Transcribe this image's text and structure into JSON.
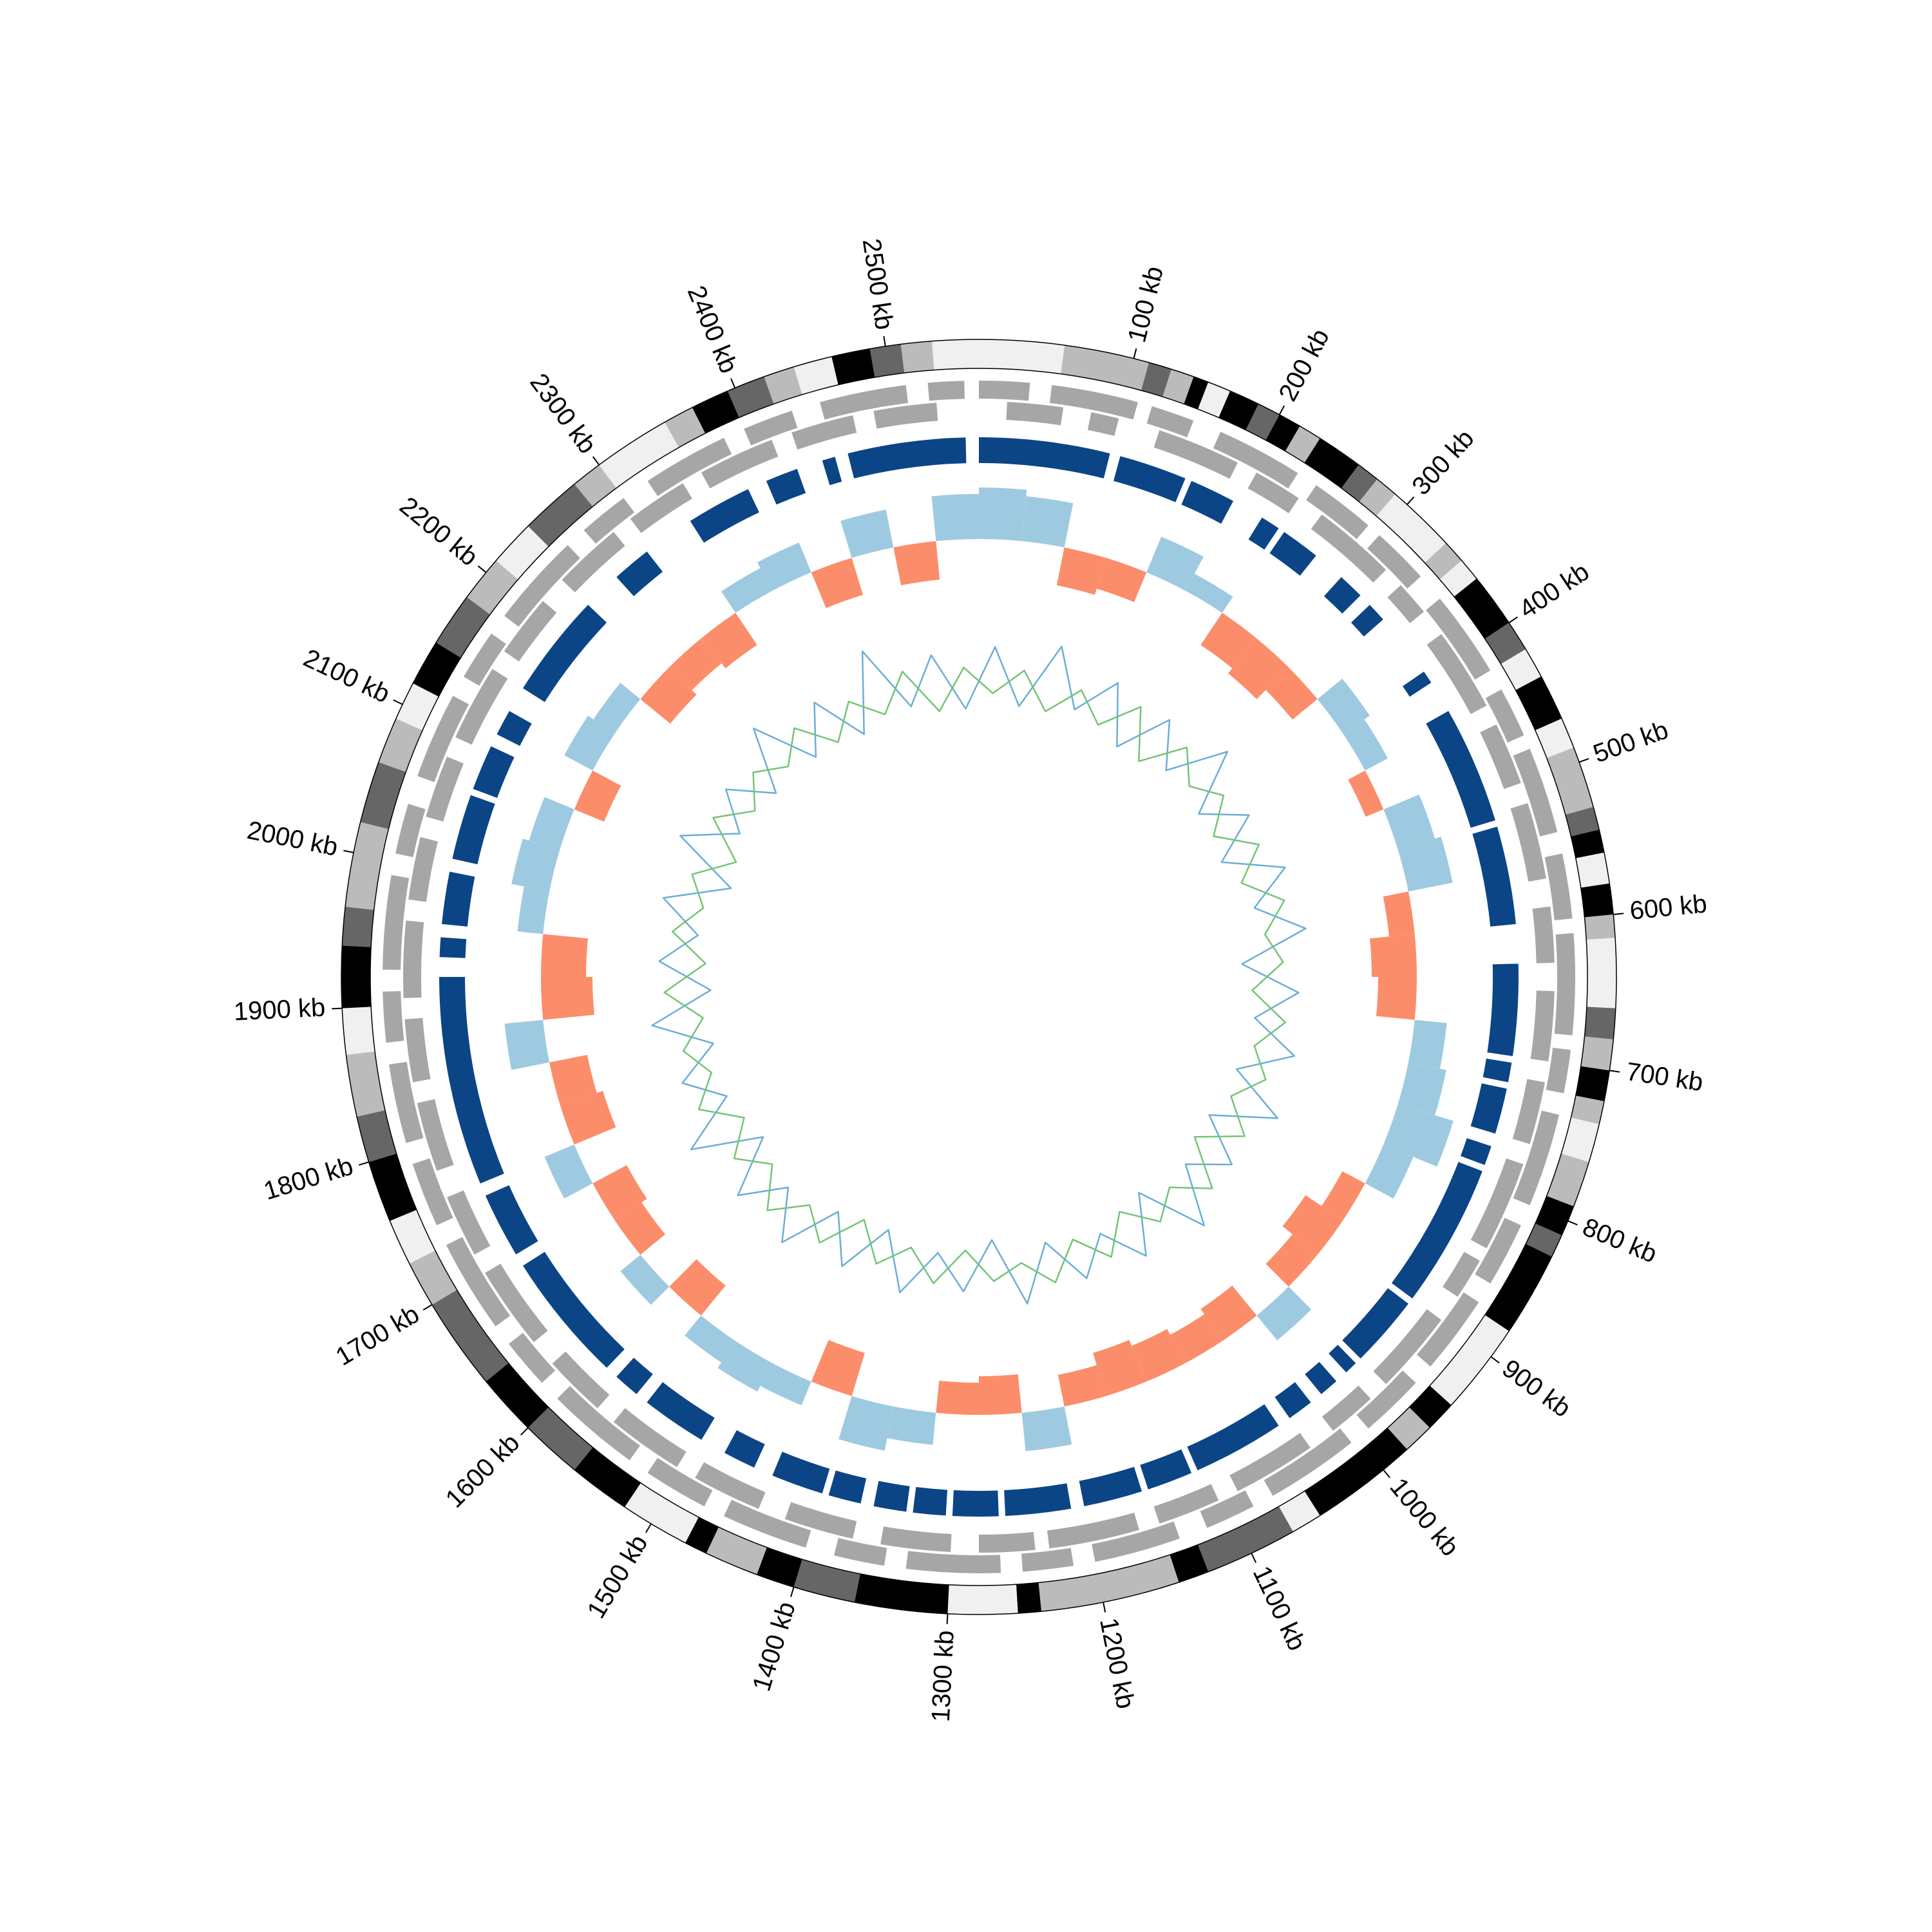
{
  "chart_data": {
    "type": "circular",
    "xlim": [
      0,
      2560
    ],
    "xticks": [
      {
        "value": 100,
        "label": "100 kb"
      },
      {
        "value": 200,
        "label": "200 kb"
      },
      {
        "value": 300,
        "label": "300 kb"
      },
      {
        "value": 400,
        "label": "400 kb"
      },
      {
        "value": 500,
        "label": "500 kb"
      },
      {
        "value": 600,
        "label": "600 kb"
      },
      {
        "value": 700,
        "label": "700 kb"
      },
      {
        "value": 800,
        "label": "800 kb"
      },
      {
        "value": 900,
        "label": "900 kb"
      },
      {
        "value": 1000,
        "label": "1000 kb"
      },
      {
        "value": 1100,
        "label": "1100 kb"
      },
      {
        "value": 1200,
        "label": "1200 kb"
      },
      {
        "value": 1300,
        "label": "1300 kb"
      },
      {
        "value": 1400,
        "label": "1400 kb"
      },
      {
        "value": 1500,
        "label": "1500 kb"
      },
      {
        "value": 1600,
        "label": "1600 kb"
      },
      {
        "value": 1700,
        "label": "1700 kb"
      },
      {
        "value": 1800,
        "label": "1800 kb"
      },
      {
        "value": 1900,
        "label": "1900 kb"
      },
      {
        "value": 2000,
        "label": "2000 kb"
      },
      {
        "value": 2100,
        "label": "2100 kb"
      },
      {
        "value": 2200,
        "label": "2200 kb"
      },
      {
        "value": 2300,
        "label": "2300 kb"
      },
      {
        "value": 2400,
        "label": "2400 kb"
      },
      {
        "value": 2500,
        "label": "2500 kb"
      }
    ],
    "bands": [
      [
        0,
        55,
        "#f0f0f0"
      ],
      [
        55,
        110,
        "#bbbbbb"
      ],
      [
        110,
        125,
        "#666666"
      ],
      [
        125,
        140,
        "#bbbbbb"
      ],
      [
        140,
        150,
        "#000000"
      ],
      [
        150,
        165,
        "#f0f0f0"
      ],
      [
        165,
        185,
        "#000000"
      ],
      [
        185,
        200,
        "#666666"
      ],
      [
        200,
        215,
        "#000000"
      ],
      [
        215,
        230,
        "#bbbbbb"
      ],
      [
        230,
        260,
        "#000000"
      ],
      [
        260,
        275,
        "#666666"
      ],
      [
        275,
        290,
        "#bbbbbb"
      ],
      [
        290,
        335,
        "#f0f0f0"
      ],
      [
        335,
        350,
        "#bbbbbb"
      ],
      [
        350,
        365,
        "#f0f0f0"
      ],
      [
        365,
        400,
        "#000000"
      ],
      [
        400,
        420,
        "#666666"
      ],
      [
        420,
        440,
        "#f0f0f0"
      ],
      [
        440,
        470,
        "#000000"
      ],
      [
        470,
        490,
        "#f0f0f0"
      ],
      [
        490,
        530,
        "#bbbbbb"
      ],
      [
        530,
        545,
        "#666666"
      ],
      [
        545,
        560,
        "#000000"
      ],
      [
        560,
        580,
        "#f0f0f0"
      ],
      [
        580,
        600,
        "#000000"
      ],
      [
        600,
        615,
        "#bbbbbb"
      ],
      [
        615,
        660,
        "#f0f0f0"
      ],
      [
        660,
        680,
        "#666666"
      ],
      [
        680,
        700,
        "#bbbbbb"
      ],
      [
        700,
        720,
        "#000000"
      ],
      [
        720,
        735,
        "#bbbbbb"
      ],
      [
        735,
        760,
        "#f0f0f0"
      ],
      [
        760,
        790,
        "#bbbbbb"
      ],
      [
        790,
        810,
        "#000000"
      ],
      [
        810,
        825,
        "#666666"
      ],
      [
        825,
        880,
        "#000000"
      ],
      [
        880,
        940,
        "#f0f0f0"
      ],
      [
        940,
        960,
        "#000000"
      ],
      [
        960,
        980,
        "#bbbbbb"
      ],
      [
        980,
        1050,
        "#000000"
      ],
      [
        1050,
        1070,
        "#f0f0f0"
      ],
      [
        1070,
        1130,
        "#666666"
      ],
      [
        1130,
        1150,
        "#000000"
      ],
      [
        1150,
        1240,
        "#bbbbbb"
      ],
      [
        1240,
        1255,
        "#000000"
      ],
      [
        1255,
        1300,
        "#f0f0f0"
      ],
      [
        1300,
        1360,
        "#000000"
      ],
      [
        1360,
        1400,
        "#666666"
      ],
      [
        1400,
        1425,
        "#000000"
      ],
      [
        1425,
        1460,
        "#bbbbbb"
      ],
      [
        1460,
        1475,
        "#000000"
      ],
      [
        1475,
        1520,
        "#f0f0f0"
      ],
      [
        1520,
        1560,
        "#000000"
      ],
      [
        1560,
        1600,
        "#666666"
      ],
      [
        1600,
        1640,
        "#000000"
      ],
      [
        1640,
        1700,
        "#666666"
      ],
      [
        1700,
        1730,
        "#bbbbbb"
      ],
      [
        1730,
        1760,
        "#f0f0f0"
      ],
      [
        1760,
        1800,
        "#000000"
      ],
      [
        1800,
        1830,
        "#666666"
      ],
      [
        1830,
        1870,
        "#bbbbbb"
      ],
      [
        1870,
        1900,
        "#f0f0f0"
      ],
      [
        1900,
        1940,
        "#000000"
      ],
      [
        1940,
        1965,
        "#666666"
      ],
      [
        1965,
        2020,
        "#bbbbbb"
      ],
      [
        2020,
        2060,
        "#666666"
      ],
      [
        2060,
        2090,
        "#bbbbbb"
      ],
      [
        2090,
        2115,
        "#f0f0f0"
      ],
      [
        2115,
        2145,
        "#000000"
      ],
      [
        2145,
        2180,
        "#666666"
      ],
      [
        2180,
        2210,
        "#bbbbbb"
      ],
      [
        2210,
        2240,
        "#f0f0f0"
      ],
      [
        2240,
        2280,
        "#666666"
      ],
      [
        2280,
        2300,
        "#bbbbbb"
      ],
      [
        2300,
        2350,
        "#f0f0f0"
      ],
      [
        2350,
        2370,
        "#bbbbbb"
      ],
      [
        2370,
        2395,
        "#000000"
      ],
      [
        2395,
        2420,
        "#666666"
      ],
      [
        2420,
        2440,
        "#bbbbbb"
      ],
      [
        2440,
        2465,
        "#f0f0f0"
      ],
      [
        2465,
        2490,
        "#000000"
      ],
      [
        2490,
        2510,
        "#666666"
      ],
      [
        2510,
        2530,
        "#bbbbbb"
      ],
      [
        2530,
        2560,
        "#f0f0f0"
      ]
    ],
    "gene_color": "#a6a6a6",
    "genes_plus": [
      [
        0,
        35
      ],
      [
        50,
        110
      ],
      [
        120,
        150
      ],
      [
        170,
        230
      ],
      [
        245,
        290
      ],
      [
        300,
        340
      ],
      [
        360,
        420
      ],
      [
        435,
        470
      ],
      [
        480,
        540
      ],
      [
        555,
        600
      ],
      [
        610,
        680
      ],
      [
        690,
        720
      ],
      [
        735,
        800
      ],
      [
        815,
        860
      ],
      [
        875,
        930
      ],
      [
        945,
        990
      ],
      [
        1005,
        1070
      ],
      [
        1085,
        1120
      ],
      [
        1140,
        1200
      ],
      [
        1215,
        1250
      ],
      [
        1265,
        1330
      ],
      [
        1345,
        1380
      ],
      [
        1400,
        1460
      ],
      [
        1475,
        1520
      ],
      [
        1535,
        1600
      ],
      [
        1615,
        1650
      ],
      [
        1665,
        1730
      ],
      [
        1745,
        1790
      ],
      [
        1805,
        1860
      ],
      [
        1875,
        1910
      ],
      [
        1925,
        1990
      ],
      [
        2005,
        2040
      ],
      [
        2060,
        2120
      ],
      [
        2135,
        2170
      ],
      [
        2185,
        2250
      ],
      [
        2265,
        2300
      ],
      [
        2320,
        2380
      ],
      [
        2395,
        2430
      ],
      [
        2450,
        2510
      ],
      [
        2525,
        2550
      ]
    ],
    "genes_minus": [
      [
        20,
        60
      ],
      [
        80,
        100
      ],
      [
        130,
        190
      ],
      [
        205,
        240
      ],
      [
        260,
        320
      ],
      [
        335,
        360
      ],
      [
        380,
        440
      ],
      [
        455,
        500
      ],
      [
        515,
        570
      ],
      [
        590,
        630
      ],
      [
        650,
        700
      ],
      [
        715,
        760
      ],
      [
        775,
        840
      ],
      [
        850,
        880
      ],
      [
        900,
        960
      ],
      [
        975,
        1010
      ],
      [
        1030,
        1090
      ],
      [
        1105,
        1150
      ],
      [
        1165,
        1230
      ],
      [
        1240,
        1280
      ],
      [
        1300,
        1350
      ],
      [
        1370,
        1420
      ],
      [
        1440,
        1490
      ],
      [
        1505,
        1560
      ],
      [
        1575,
        1620
      ],
      [
        1640,
        1700
      ],
      [
        1715,
        1760
      ],
      [
        1780,
        1830
      ],
      [
        1845,
        1890
      ],
      [
        1905,
        1960
      ],
      [
        1975,
        2020
      ],
      [
        2035,
        2080
      ],
      [
        2095,
        2150
      ],
      [
        2165,
        2210
      ],
      [
        2230,
        2280
      ],
      [
        2295,
        2340
      ],
      [
        2355,
        2410
      ],
      [
        2425,
        2470
      ],
      [
        2485,
        2530
      ]
    ],
    "block_color": "#0b4586",
    "blocks": [
      [
        0,
        100
      ],
      [
        108,
        160
      ],
      [
        165,
        200
      ],
      [
        225,
        240
      ],
      [
        245,
        275
      ],
      [
        300,
        320
      ],
      [
        330,
        345
      ],
      [
        395,
        405
      ],
      [
        430,
        520
      ],
      [
        525,
        600
      ],
      [
        630,
        700
      ],
      [
        705,
        720
      ],
      [
        725,
        760
      ],
      [
        770,
        785
      ],
      [
        790,
        900
      ],
      [
        905,
        960
      ],
      [
        965,
        975
      ],
      [
        985,
        1000
      ],
      [
        1010,
        1030
      ],
      [
        1040,
        1110
      ],
      [
        1115,
        1150
      ],
      [
        1155,
        1200
      ],
      [
        1210,
        1260
      ],
      [
        1265,
        1300
      ],
      [
        1305,
        1330
      ],
      [
        1335,
        1360
      ],
      [
        1370,
        1395
      ],
      [
        1400,
        1440
      ],
      [
        1455,
        1480
      ],
      [
        1500,
        1550
      ],
      [
        1560,
        1580
      ],
      [
        1590,
        1690
      ],
      [
        1700,
        1750
      ],
      [
        1760,
        1920
      ],
      [
        1935,
        1950
      ],
      [
        1960,
        2000
      ],
      [
        2010,
        2060
      ],
      [
        2065,
        2100
      ],
      [
        2110,
        2130
      ],
      [
        2150,
        2230
      ],
      [
        2260,
        2290
      ],
      [
        2330,
        2380
      ],
      [
        2395,
        2420
      ],
      [
        2440,
        2450
      ],
      [
        2460,
        2550
      ]
    ],
    "x": [
      20,
      60,
      100,
      140,
      180,
      220,
      260,
      300,
      340,
      380,
      420,
      460,
      500,
      540,
      580,
      620,
      660,
      700,
      740,
      780,
      820,
      860,
      900,
      940,
      980,
      1020,
      1060,
      1100,
      1140,
      1180,
      1220,
      1260,
      1300,
      1340,
      1380,
      1420,
      1460,
      1500,
      1540,
      1580,
      1620,
      1660,
      1700,
      1740,
      1780,
      1820,
      1860,
      1900,
      1940,
      1980,
      2020,
      2060,
      2100,
      2140,
      2180,
      2220,
      2260,
      2300,
      2340,
      2380,
      2420,
      2460,
      2500,
      2540
    ],
    "skew": {
      "ylim": [
        -1,
        1
      ],
      "positive_color": "#9ecae1",
      "negative_color": "#fc8d6a",
      "values": [
        0.8,
        0.7,
        -0.6,
        -0.5,
        0.6,
        0.3,
        -0.6,
        -0.7,
        -0.5,
        0.5,
        0.4,
        -0.3,
        0.6,
        0.7,
        -0.4,
        -0.7,
        -0.6,
        0.5,
        0.6,
        0.9,
        0.5,
        -0.4,
        -0.7,
        -0.5,
        0.5,
        -0.6,
        -0.5,
        -0.6,
        -0.7,
        -0.5,
        0.6,
        -0.6,
        -0.5,
        0.5,
        0.7,
        -0.7,
        0.4,
        0.5,
        0.4,
        -0.6,
        0.4,
        -0.5,
        -0.6,
        0.5,
        -0.7,
        -0.6,
        0.6,
        -0.8,
        -0.7,
        0.4,
        0.6,
        0.5,
        -0.5,
        0.5,
        0.4,
        -0.6,
        -0.5,
        -0.6,
        0.4,
        0.5,
        -0.6,
        0.6,
        -0.6,
        0.7
      ]
    },
    "lines": {
      "ylim": [
        -1,
        1
      ],
      "series": [
        {
          "color": "#6baed6",
          "values": [
            0.6,
            -0.5,
            0.8,
            -0.3,
            0.5,
            -0.6,
            0.4,
            -0.4,
            0.7,
            -0.5,
            0.3,
            -0.6,
            0.5,
            -0.3,
            0.6,
            -0.7,
            0.4,
            -0.4,
            0.5,
            -0.5,
            0.6,
            -0.6,
            0.3,
            -0.4,
            0.7,
            -0.6,
            0.5,
            -0.3,
            0.4,
            -0.5,
            0.6,
            -0.7,
            0.3,
            -0.4,
            0.5,
            -0.6,
            0.4,
            -0.5,
            0.6,
            -0.3,
            0.5,
            -0.6,
            0.7,
            -0.4,
            0.3,
            -0.5,
            0.6,
            -0.6,
            0.4,
            -0.3,
            0.5,
            -0.7,
            0.6,
            -0.4,
            0.3,
            -0.5,
            0.7,
            -0.5,
            0.4,
            -0.6,
            0.9,
            -0.4,
            0.5,
            -0.6
          ]
        },
        {
          "color": "#74c476",
          "values": [
            -0.3,
            0.2,
            -0.5,
            0.1,
            -0.4,
            0.3,
            -0.6,
            0.2,
            -0.3,
            0.1,
            -0.5,
            0.2,
            -0.4,
            0.3,
            -0.2,
            0.1,
            -0.5,
            0.2,
            -0.3,
            0.1,
            -0.4,
            0.2,
            -0.6,
            0.3,
            -0.3,
            0.1,
            -0.5,
            0.2,
            -0.4,
            0.3,
            -0.2,
            0.1,
            -0.5,
            0.2,
            -0.4,
            0.1,
            -0.6,
            0.2,
            -0.3,
            0.3,
            -0.4,
            0.1,
            -0.5,
            0.2,
            -0.3,
            0.1,
            -0.4,
            0.3,
            -0.5,
            0.2,
            -0.3,
            0.1,
            -0.6,
            0.2,
            -0.4,
            0.1,
            -0.3,
            0.2,
            -0.5,
            0.1,
            -0.4,
            0.3,
            -0.6,
            0.2
          ]
        }
      ]
    }
  }
}
